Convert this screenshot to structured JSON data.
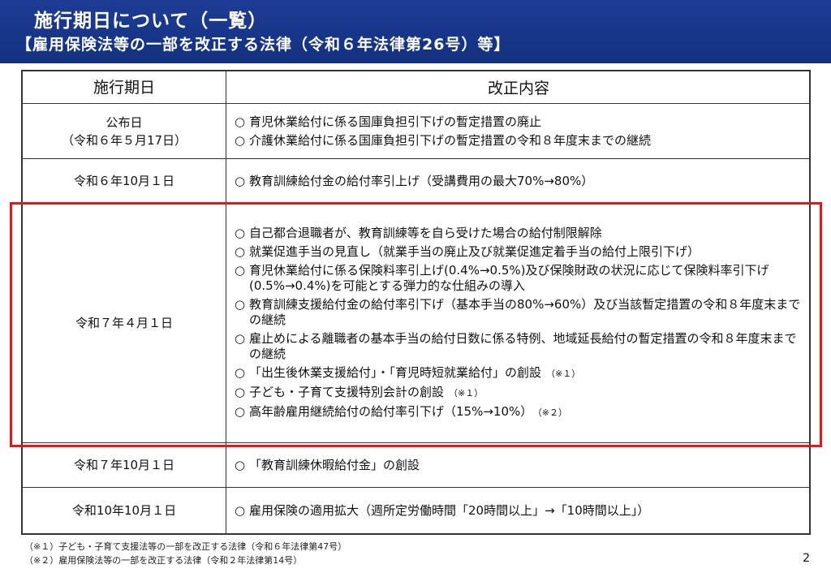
{
  "header": {
    "title": "施行期日について（一覧）",
    "subtitle": "【雇用保険法等の一部を改正する法律（令和６年法律第26号）等】"
  },
  "table": {
    "headers": {
      "date": "施行期日",
      "content": "改正内容"
    },
    "rows": [
      {
        "date_lines": [
          "公布日",
          "（令和６年５月17日）"
        ],
        "items": [
          {
            "text": "育児休業給付に係る国庫負担引下げの暫定措置の廃止",
            "note": ""
          },
          {
            "text": "介護休業給付に係る国庫負担引下げの暫定措置の令和８年度末までの継続",
            "note": ""
          }
        ]
      },
      {
        "date_lines": [
          "令和６年10月１日"
        ],
        "items": [
          {
            "text": "教育訓練給付金の給付率引上げ（受講費用の最大70%→80%）",
            "note": ""
          }
        ]
      },
      {
        "date_lines": [
          "令和７年４月１日"
        ],
        "items": [
          {
            "text": "自己都合退職者が、教育訓練等を自ら受けた場合の給付制限解除",
            "note": ""
          },
          {
            "text": "就業促進手当の見直し（就業手当の廃止及び就業促進定着手当の給付上限引下げ）",
            "note": ""
          },
          {
            "text": "育児休業給付に係る保険料率引上げ(0.4%→0.5%)及び保険財政の状況に応じて保険料率引下げ(0.5%→0.4%)を可能とする弾力的な仕組みの導入",
            "note": ""
          },
          {
            "text": "教育訓練支援給付金の給付率引下げ（基本手当の80%→60%）及び当該暫定措置の令和８年度末までの継続",
            "note": ""
          },
          {
            "text": "雇止めによる離職者の基本手当の給付日数に係る特例、地域延長給付の暫定措置の令和８年度末までの継続",
            "note": ""
          },
          {
            "text": "「出生後休業支援給付」・「育児時短就業給付」の創設",
            "note": "（※１）"
          },
          {
            "text": "子ども・子育て支援特別会計の創設",
            "note": "（※１）"
          },
          {
            "text": "高年齢雇用継続給付の給付率引下げ（15%→10%）",
            "note": "（※２）"
          }
        ]
      },
      {
        "date_lines": [
          "令和７年10月１日"
        ],
        "items": [
          {
            "text": "「教育訓練休暇給付金」の創設",
            "note": ""
          }
        ]
      },
      {
        "date_lines": [
          "令和10年10月１日"
        ],
        "items": [
          {
            "text": "雇用保険の適用拡大（週所定労働時間「20時間以上」→「10時間以上」）",
            "note": ""
          }
        ]
      }
    ],
    "bullet": "○"
  },
  "footnotes": [
    "（※１）子ども・子育て支援法等の一部を改正する法律（令和６年法律第47号）",
    "（※２）雇用保険法等の一部を改正する法律（令和２年法律第14号）"
  ],
  "page_number": "2",
  "colors": {
    "header_bg": "#1a3888",
    "highlight": "#e0191f"
  }
}
